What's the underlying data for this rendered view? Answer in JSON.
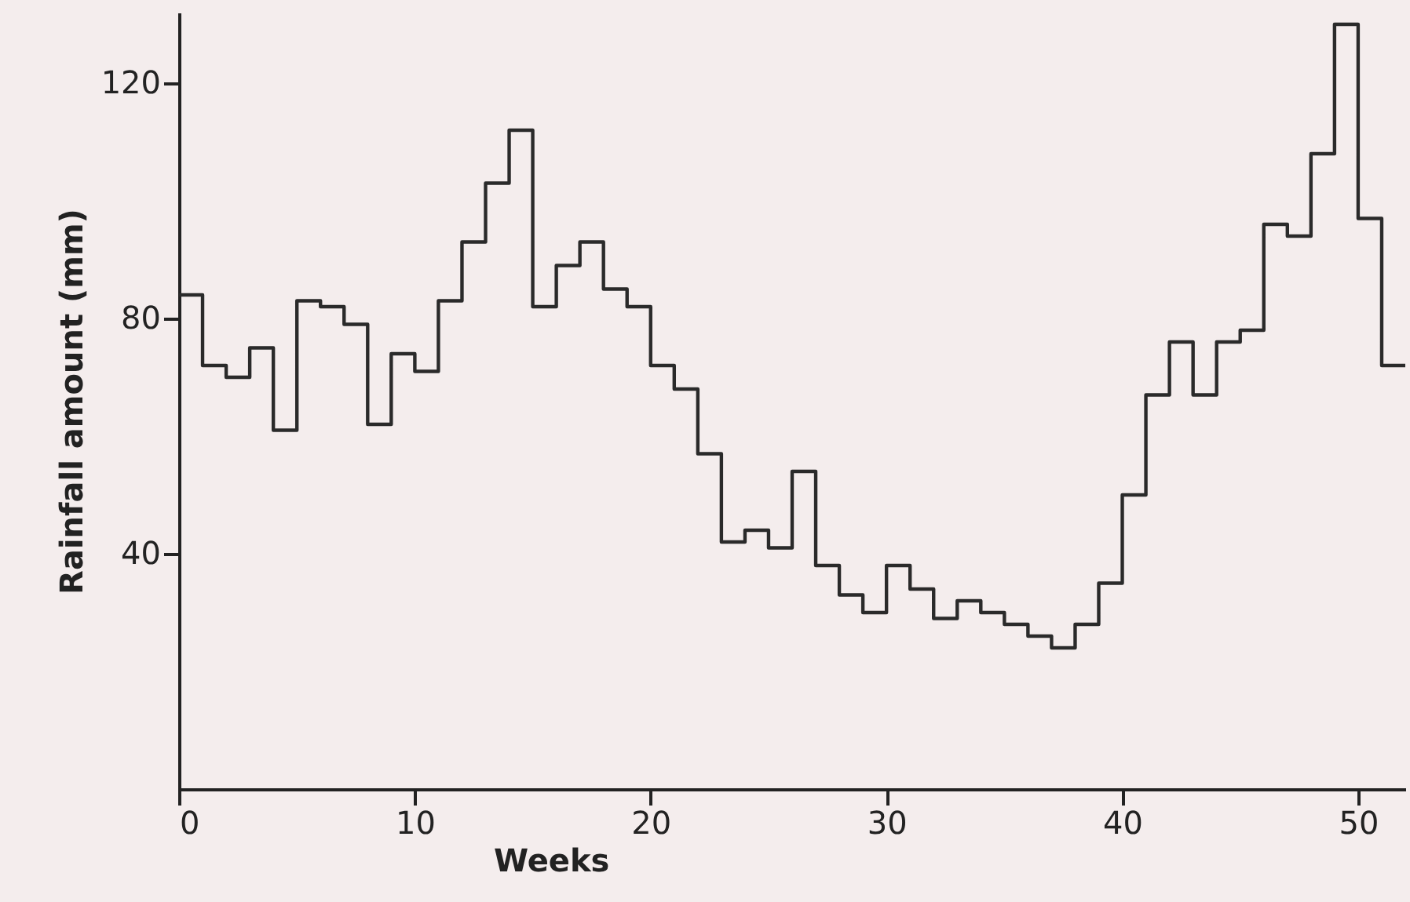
{
  "chart_data": {
    "type": "histogram",
    "xlabel": "Weeks",
    "ylabel": "Rainfall amount (mm)",
    "bins": [
      0,
      1,
      2,
      3,
      4,
      5,
      6,
      7,
      8,
      9,
      10,
      11,
      12,
      13,
      14,
      15,
      16,
      17,
      18,
      19,
      20,
      21,
      22,
      23,
      24,
      25,
      26,
      27,
      28,
      29,
      30,
      31,
      32,
      33,
      34,
      35,
      36,
      37,
      38,
      39,
      40,
      41,
      42,
      43,
      44,
      45,
      46,
      47,
      48,
      49,
      50,
      51,
      52
    ],
    "values": [
      84,
      72,
      70,
      75,
      61,
      83,
      82,
      79,
      62,
      74,
      71,
      83,
      93,
      103,
      112,
      82,
      89,
      93,
      85,
      82,
      72,
      68,
      57,
      42,
      44,
      41,
      54,
      38,
      33,
      30,
      38,
      34,
      29,
      32,
      30,
      28,
      26,
      24,
      28,
      35,
      50,
      67,
      76,
      67,
      76,
      78,
      96,
      94,
      108,
      130,
      97,
      72
    ],
    "color": "#2a2a2a",
    "xlim": [
      0,
      52
    ],
    "ylim": [
      0,
      132
    ],
    "xticks": [
      0,
      10,
      20,
      30,
      40,
      50
    ],
    "yticks": [
      40,
      80,
      120
    ],
    "grid": false
  }
}
